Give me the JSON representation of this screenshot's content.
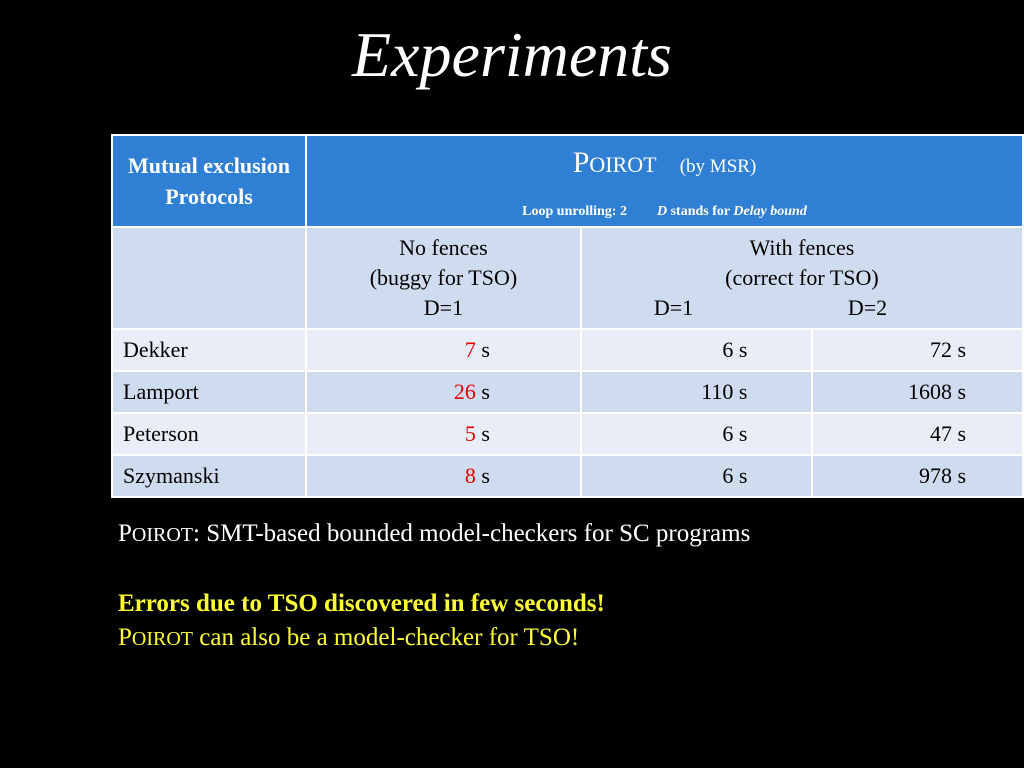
{
  "slide_title": "Experiments",
  "table": {
    "header": {
      "left_line1": "Mutual exclusion",
      "left_line2": "Protocols",
      "tool_name_first": "P",
      "tool_name_rest": "OIROT",
      "tool_by": "(by MSR)",
      "loop_unrolling": "Loop unrolling: 2",
      "d_letter": "D",
      "d_stands_for": "stands for",
      "delay_bound": "Delay bound"
    },
    "subheader": {
      "no_fences_l1": "No fences",
      "no_fences_l2": "(buggy for TSO)",
      "no_fences_l3": "D=1",
      "with_fences_l1": "With fences",
      "with_fences_l2": "(correct for TSO)",
      "with_d1": "D=1",
      "with_d2": "D=2"
    },
    "unit": "s",
    "rows": [
      {
        "name": "Dekker",
        "no_fences": "7",
        "d1": "6 s",
        "d2": "72 s"
      },
      {
        "name": "Lamport",
        "no_fences": "26",
        "d1": "110 s",
        "d2": "1608 s"
      },
      {
        "name": "Peterson",
        "no_fences": "5",
        "d1": "6 s",
        "d2": "47 s"
      },
      {
        "name": "Szymanski",
        "no_fences": "8",
        "d1": "6 s",
        "d2": "978 s"
      }
    ]
  },
  "notes": {
    "poirot_first": "P",
    "poirot_rest": "OIROT",
    "line1_rest": ": SMT-based bounded model-checkers for SC  programs",
    "line2": "Errors due to TSO discovered in few seconds!",
    "line3_rest": " can also be a model-checker for TSO!"
  },
  "colors": {
    "header_blue": "#2f7fd4",
    "row_light": "#e8edf7",
    "row_dark": "#cfdbee",
    "error_red": "#e00000",
    "highlight_yellow": "#ffff33"
  }
}
